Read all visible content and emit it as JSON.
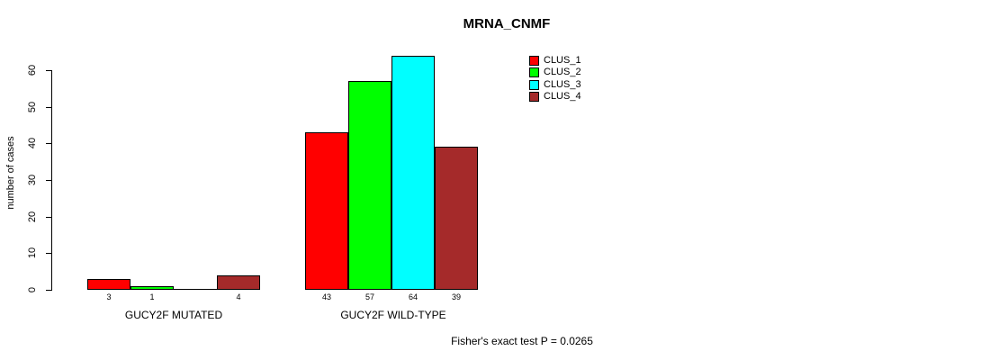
{
  "title": "MRNA_CNMF",
  "chart_data": {
    "type": "bar",
    "title": "MRNA_CNMF",
    "xlabel": "",
    "ylabel": "number of cases",
    "ylim": [
      0,
      60
    ],
    "yticks": [
      0,
      10,
      20,
      30,
      40,
      50,
      60
    ],
    "grid": false,
    "legend_position": "top-right",
    "series": [
      {
        "name": "CLUS_1",
        "color": "#ff0000"
      },
      {
        "name": "CLUS_2",
        "color": "#00ff00"
      },
      {
        "name": "CLUS_3",
        "color": "#00ffff"
      },
      {
        "name": "CLUS_4",
        "color": "#a52a2a"
      }
    ],
    "groups": [
      {
        "label": "GUCY2F MUTATED",
        "values": [
          3,
          1,
          0,
          4
        ],
        "bar_labels": [
          "3",
          "1",
          "",
          "4"
        ]
      },
      {
        "label": "GUCY2F WILD-TYPE",
        "values": [
          43,
          57,
          64,
          39
        ],
        "bar_labels": [
          "43",
          "57",
          "64",
          "39"
        ]
      }
    ],
    "annotation": "Fisher's exact test P = 0.0265",
    "axis_color": "#000000",
    "bar_border_color": "#000000"
  }
}
